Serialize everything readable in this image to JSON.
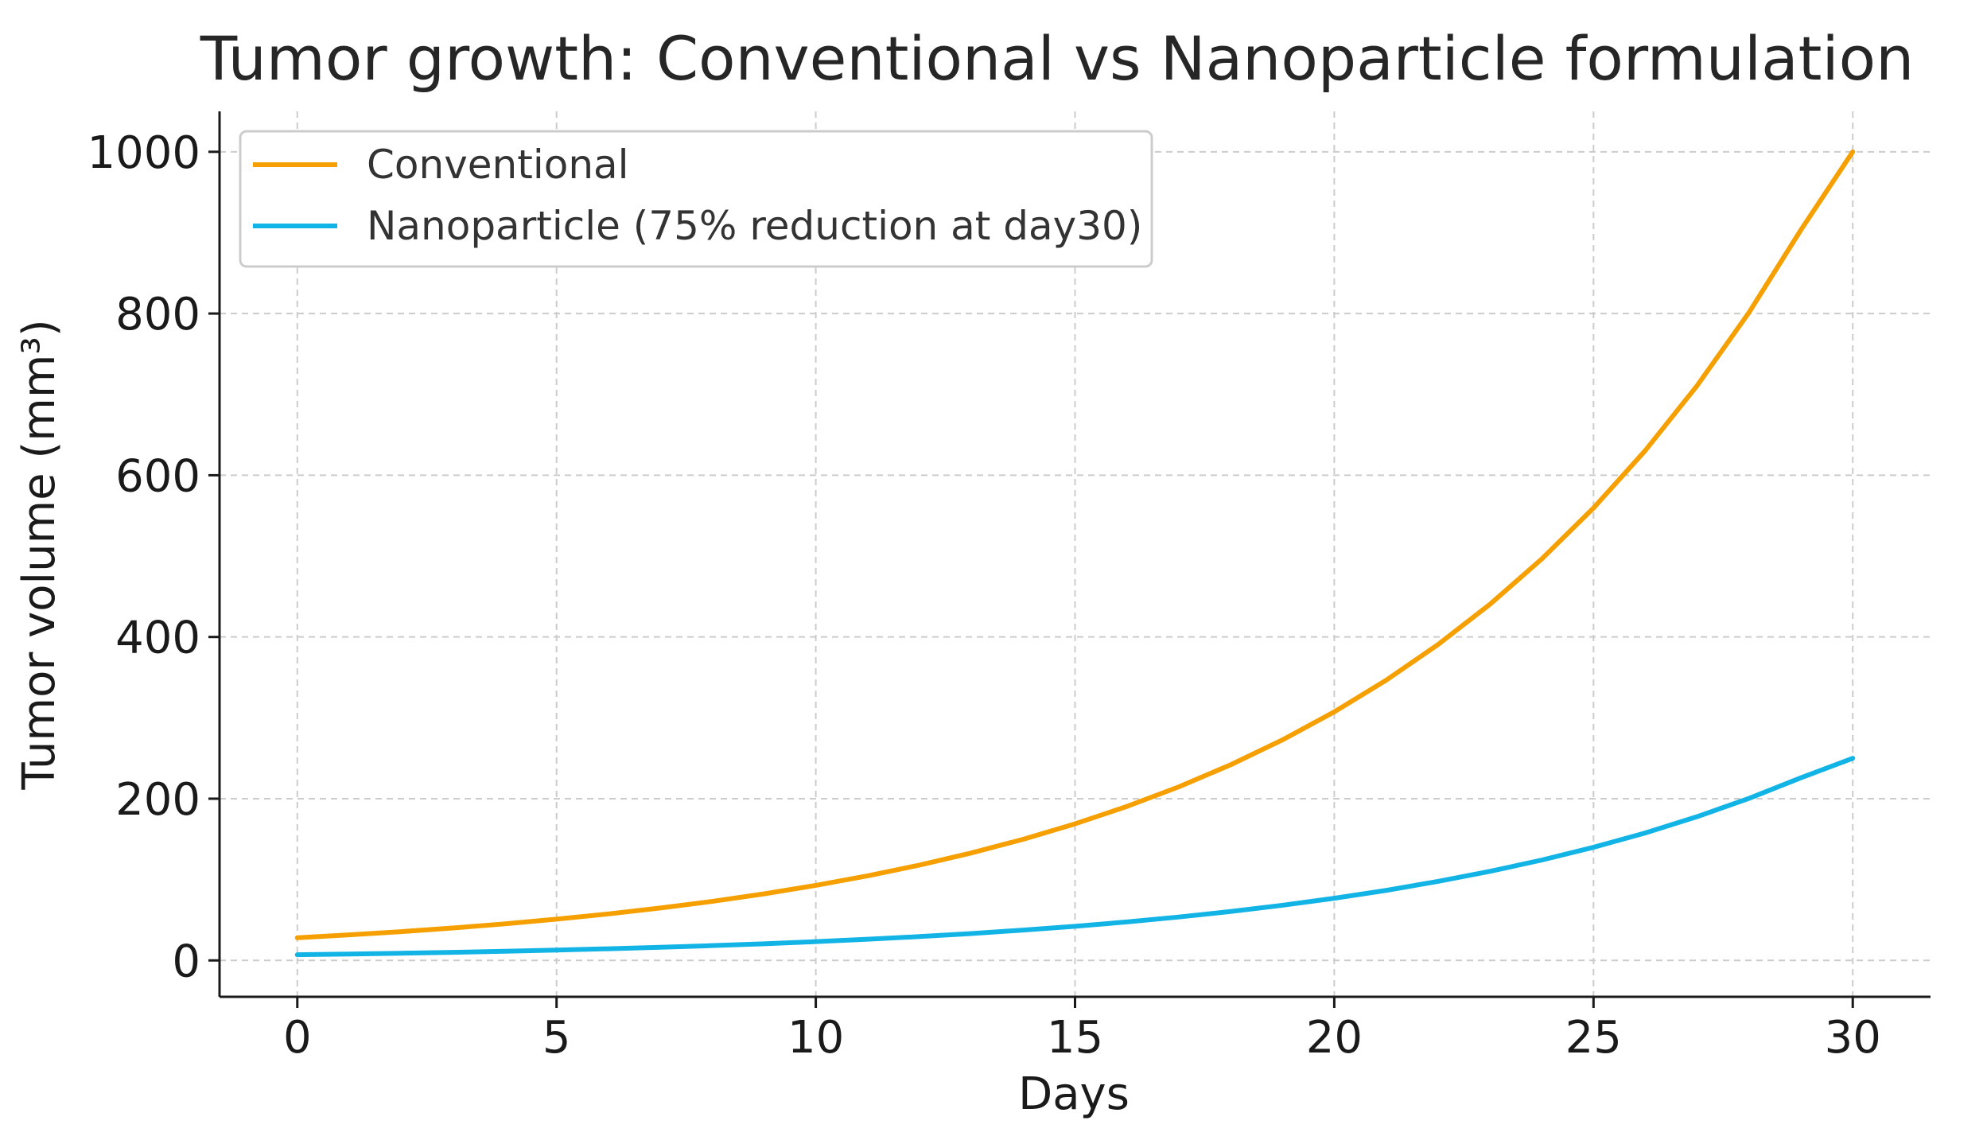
{
  "chart_data": {
    "type": "line",
    "title": "Tumor growth: Conventional vs Nanoparticle formulation",
    "xlabel": "Days",
    "ylabel": "Tumor volume (mm³)",
    "xlim": [
      -1.5,
      31.5
    ],
    "ylim": [
      -45,
      1050
    ],
    "xticks": [
      0,
      5,
      10,
      15,
      20,
      25,
      30
    ],
    "yticks": [
      0,
      200,
      400,
      600,
      800,
      1000
    ],
    "grid": true,
    "legend_position": "upper-left",
    "x": [
      0,
      1,
      2,
      3,
      4,
      5,
      6,
      7,
      8,
      9,
      10,
      11,
      12,
      13,
      14,
      15,
      16,
      17,
      18,
      19,
      20,
      21,
      22,
      23,
      24,
      25,
      26,
      27,
      28,
      29,
      30
    ],
    "series": [
      {
        "name": "Conventional",
        "color": "#f5a000",
        "values": [
          28.0,
          31.6,
          35.6,
          40.1,
          45.2,
          51.0,
          57.5,
          64.8,
          73.0,
          82.3,
          92.8,
          104.6,
          117.9,
          132.9,
          149.8,
          168.9,
          190.4,
          214.6,
          241.9,
          272.7,
          307.4,
          346.5,
          390.6,
          440.3,
          496.3,
          559.5,
          630.7,
          711.0,
          801.4,
          903.4,
          1000.0
        ]
      },
      {
        "name": "Nanoparticle (75% reduction at day30)",
        "color": "#12b4e6",
        "values": [
          7.0,
          7.9,
          8.9,
          10.0,
          11.3,
          12.8,
          14.4,
          16.2,
          18.3,
          20.6,
          23.2,
          26.2,
          29.5,
          33.2,
          37.5,
          42.2,
          47.6,
          53.7,
          60.5,
          68.2,
          76.9,
          86.6,
          97.7,
          110.1,
          124.1,
          139.9,
          157.7,
          177.8,
          200.4,
          225.9,
          250.0
        ]
      }
    ]
  }
}
